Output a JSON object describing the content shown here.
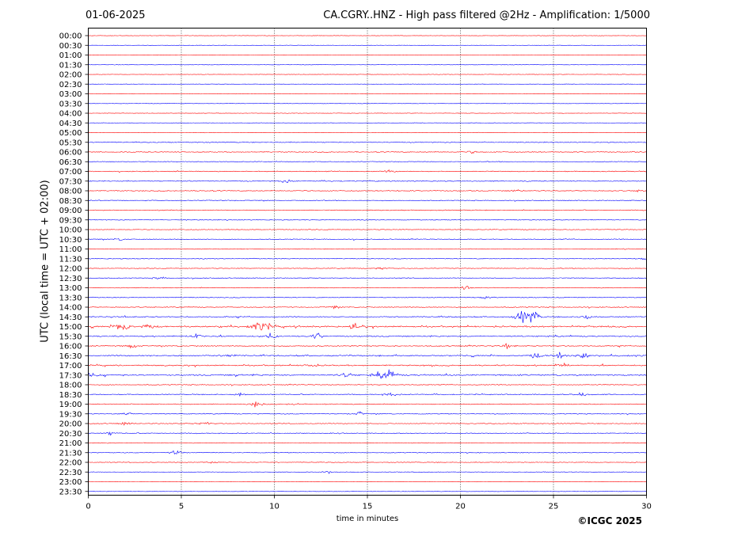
{
  "header": {
    "date": "01-06-2025",
    "title": "CA.CGRY..HNZ - High pass filtered @2Hz - Amplification: 1/5000"
  },
  "footer": {
    "copyright": "©ICGC 2025"
  },
  "chart_data": {
    "type": "line",
    "title": "CA.CGRY..HNZ - High pass filtered @2Hz - Amplification: 1/5000",
    "xlabel": "time in minutes",
    "ylabel": "UTC (local time = UTC + 02:00)",
    "xlim": [
      0,
      30
    ],
    "x_ticks": [
      "0",
      "5",
      "10",
      "15",
      "20",
      "25",
      "30"
    ],
    "grid_x": true,
    "trace_colors": [
      "#ff0000",
      "#0000ff"
    ],
    "rows": [
      "00:00",
      "00:30",
      "01:00",
      "01:30",
      "02:00",
      "02:30",
      "03:00",
      "03:30",
      "04:00",
      "04:30",
      "05:00",
      "05:30",
      "06:00",
      "06:30",
      "07:00",
      "07:30",
      "08:00",
      "08:30",
      "09:00",
      "09:30",
      "10:00",
      "10:30",
      "11:00",
      "11:30",
      "12:00",
      "12:30",
      "13:00",
      "13:30",
      "14:00",
      "14:30",
      "15:00",
      "15:30",
      "16:00",
      "16:30",
      "17:00",
      "17:30",
      "18:00",
      "18:30",
      "19:00",
      "19:30",
      "20:00",
      "20:30",
      "21:00",
      "21:30",
      "22:00",
      "22:30",
      "23:00",
      "23:30"
    ],
    "activity": [
      0.05,
      0.05,
      0.05,
      0.05,
      0.05,
      0.05,
      0.05,
      0.05,
      0.05,
      0.05,
      0.05,
      0.3,
      0.35,
      0.25,
      0.35,
      0.35,
      0.4,
      0.3,
      0.3,
      0.25,
      0.25,
      0.35,
      0.25,
      0.3,
      0.25,
      0.3,
      0.25,
      0.3,
      0.35,
      0.5,
      0.75,
      0.55,
      0.45,
      0.65,
      0.6,
      0.7,
      0.35,
      0.35,
      0.35,
      0.3,
      0.3,
      0.3,
      0.25,
      0.25,
      0.2,
      0.15,
      0.05,
      0.05
    ],
    "events": [
      {
        "row": "07:00",
        "minute": 16.2,
        "amplitude": 0.4
      },
      {
        "row": "07:30",
        "minute": 10.6,
        "amplitude": 0.5
      },
      {
        "row": "06:00",
        "minute": 20.6,
        "amplitude": 0.5
      },
      {
        "row": "08:00",
        "minute": 23.0,
        "amplitude": 0.4
      },
      {
        "row": "08:00",
        "minute": 29.8,
        "amplitude": 0.6
      },
      {
        "row": "10:30",
        "minute": 1.7,
        "amplitude": 0.4
      },
      {
        "row": "11:30",
        "minute": 29.9,
        "amplitude": 0.4
      },
      {
        "row": "12:00",
        "minute": 15.7,
        "amplitude": 0.5
      },
      {
        "row": "12:30",
        "minute": 3.8,
        "amplitude": 0.45
      },
      {
        "row": "13:00",
        "minute": 20.3,
        "amplitude": 0.5
      },
      {
        "row": "13:30",
        "minute": 21.3,
        "amplitude": 0.4
      },
      {
        "row": "14:00",
        "minute": 13.2,
        "amplitude": 0.4
      },
      {
        "row": "14:30",
        "minute": 23.3,
        "amplitude": 2.2
      },
      {
        "row": "14:30",
        "minute": 23.9,
        "amplitude": 2.5
      },
      {
        "row": "14:30",
        "minute": 26.8,
        "amplitude": 0.9
      },
      {
        "row": "15:00",
        "minute": 2.0,
        "amplitude": 1.4
      },
      {
        "row": "15:00",
        "minute": 1.6,
        "amplitude": 1.0
      },
      {
        "row": "15:00",
        "minute": 3.2,
        "amplitude": 1.0
      },
      {
        "row": "15:00",
        "minute": 9.1,
        "amplitude": 1.6
      },
      {
        "row": "15:00",
        "minute": 9.6,
        "amplitude": 1.0
      },
      {
        "row": "15:00",
        "minute": 14.3,
        "amplitude": 1.0
      },
      {
        "row": "15:30",
        "minute": 5.8,
        "amplitude": 1.0
      },
      {
        "row": "15:30",
        "minute": 9.8,
        "amplitude": 1.0
      },
      {
        "row": "15:30",
        "minute": 12.3,
        "amplitude": 1.0
      },
      {
        "row": "16:00",
        "minute": 2.4,
        "amplitude": 0.9
      },
      {
        "row": "16:00",
        "minute": 22.5,
        "amplitude": 0.6
      },
      {
        "row": "16:30",
        "minute": 7.6,
        "amplitude": 0.6
      },
      {
        "row": "16:30",
        "minute": 24.0,
        "amplitude": 1.2
      },
      {
        "row": "16:30",
        "minute": 25.3,
        "amplitude": 1.3
      },
      {
        "row": "16:30",
        "minute": 26.6,
        "amplitude": 1.0
      },
      {
        "row": "17:00",
        "minute": 25.5,
        "amplitude": 0.9
      },
      {
        "row": "17:00",
        "minute": 12.0,
        "amplitude": 0.5
      },
      {
        "row": "17:30",
        "minute": 16.2,
        "amplitude": 2.0
      },
      {
        "row": "17:30",
        "minute": 15.6,
        "amplitude": 1.0
      },
      {
        "row": "17:30",
        "minute": 0.0,
        "amplitude": 1.0
      },
      {
        "row": "17:30",
        "minute": 13.9,
        "amplitude": 0.7
      },
      {
        "row": "18:30",
        "minute": 8.1,
        "amplitude": 0.5
      },
      {
        "row": "18:30",
        "minute": 16.2,
        "amplitude": 0.8
      },
      {
        "row": "18:30",
        "minute": 26.5,
        "amplitude": 0.8
      },
      {
        "row": "19:00",
        "minute": 9.0,
        "amplitude": 1.0
      },
      {
        "row": "19:00",
        "minute": 11.0,
        "amplitude": 0.5
      },
      {
        "row": "19:30",
        "minute": 14.6,
        "amplitude": 0.7
      },
      {
        "row": "19:30",
        "minute": 2.1,
        "amplitude": 0.6
      },
      {
        "row": "20:00",
        "minute": 6.2,
        "amplitude": 0.8
      },
      {
        "row": "20:00",
        "minute": 2.0,
        "amplitude": 0.5
      },
      {
        "row": "20:30",
        "minute": 1.2,
        "amplitude": 0.5
      },
      {
        "row": "21:30",
        "minute": 4.7,
        "amplitude": 0.8
      },
      {
        "row": "22:00",
        "minute": 6.6,
        "amplitude": 0.4
      },
      {
        "row": "22:30",
        "minute": 12.9,
        "amplitude": 0.4
      }
    ]
  }
}
